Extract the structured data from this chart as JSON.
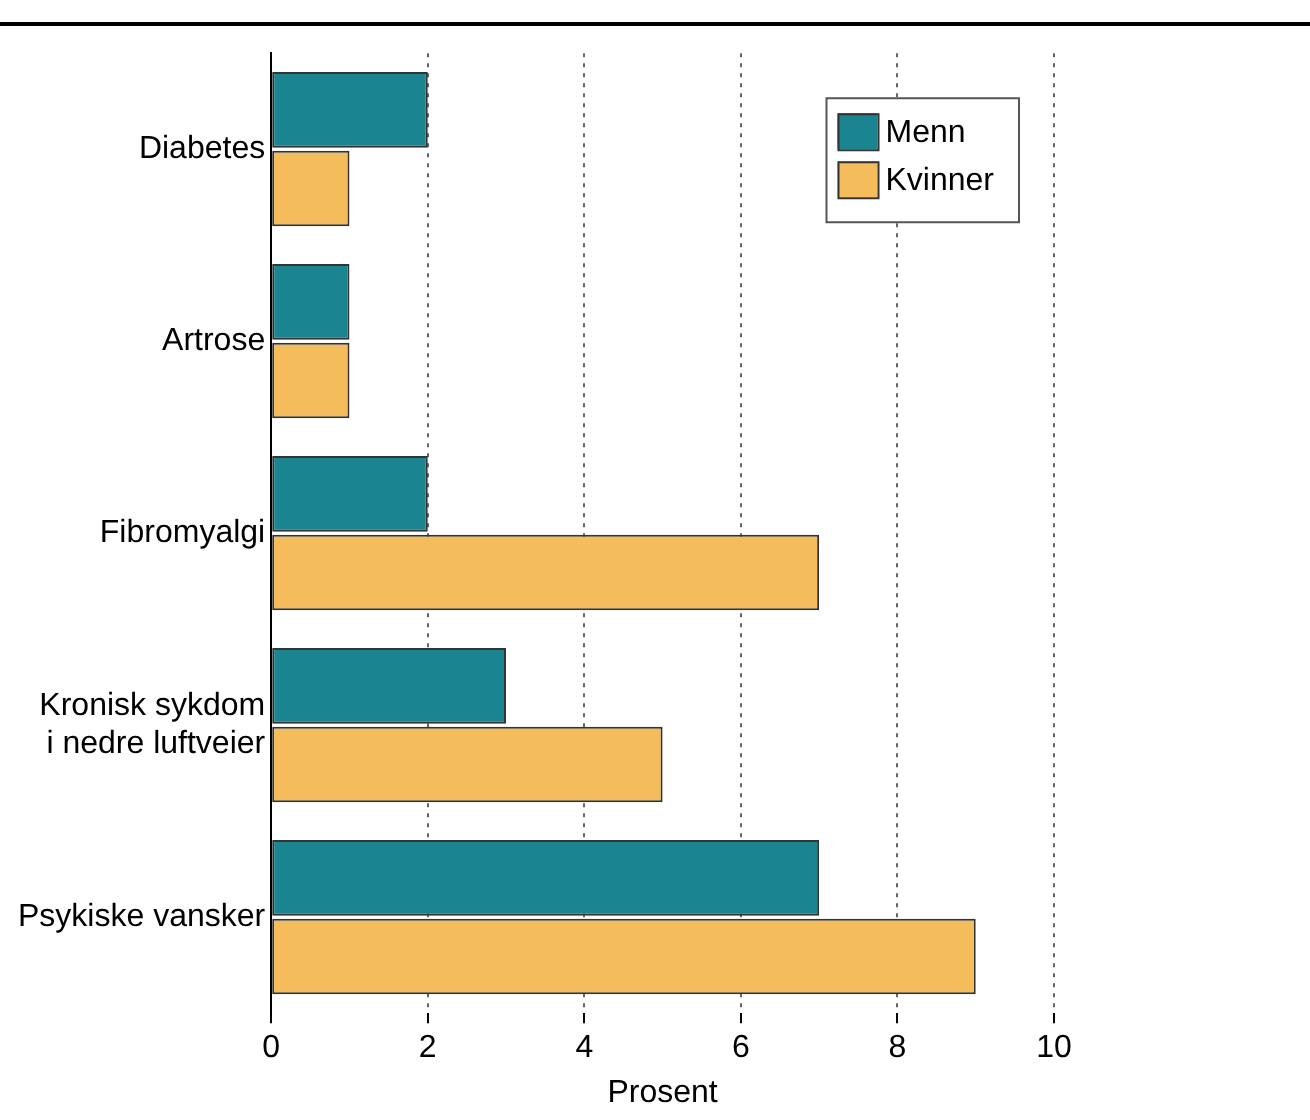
{
  "chart_data": {
    "type": "bar",
    "orientation": "horizontal",
    "xlabel": "Prosent",
    "categories": [
      "Diabetes",
      "Artrose",
      "Fibromyalgi",
      "Kronisk sykdom\ni nedre luftveier",
      "Psykiske vansker"
    ],
    "series": [
      {
        "name": "Menn",
        "color": "#1a8591",
        "values": [
          2,
          1,
          2,
          3,
          7
        ]
      },
      {
        "name": "Kvinner",
        "color": "#f5bc5c",
        "values": [
          1,
          1,
          7,
          5,
          9
        ]
      }
    ],
    "xlim": [
      0,
      10
    ],
    "xticks": [
      0,
      2,
      4,
      6,
      8,
      10
    ],
    "grid": "x",
    "legend": "top right"
  }
}
